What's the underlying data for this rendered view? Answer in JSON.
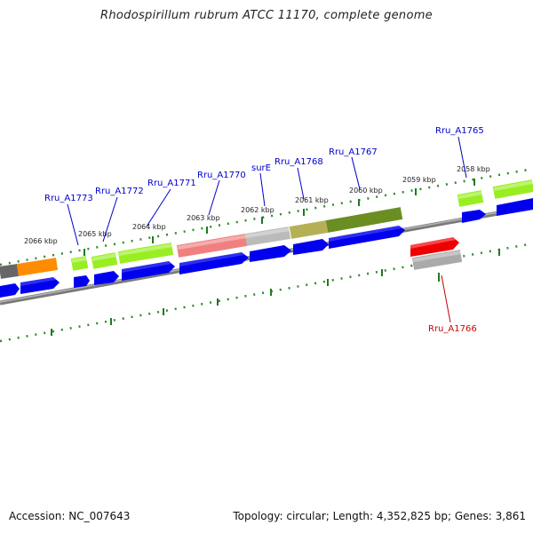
{
  "title": "Rhodospirillum rubrum ATCC 11170, complete genome",
  "footer": {
    "accession": "Accession: NC_007643",
    "stats": "Topology: circular; Length: 4,352,825 bp; Genes: 3,861"
  },
  "scale_labels": [
    "2066 kbp",
    "2065 kbp",
    "2064 kbp",
    "2063 kbp",
    "2062 kbp",
    "2061 kbp",
    "2060 kbp",
    "2059 kbp",
    "2058 kbp"
  ],
  "gene_labels": {
    "rru_a1773": "Rru_A1773",
    "rru_a1772": "Rru_A1772",
    "rru_a1771": "Rru_A1771",
    "rru_a1770": "Rru_A1770",
    "sure": "surE",
    "rru_a1768": "Rru_A1768",
    "rru_a1767": "Rru_A1767",
    "rru_a1765": "Rru_A1765",
    "rru_a1766": "Rru_A1766"
  },
  "colors": {
    "cds_arrow": "#0000ee",
    "backbone": "#808080",
    "tick": "#008000",
    "label_blue": "#0000cc",
    "label_red": "#cc0000",
    "highlight": "#ff0000"
  }
}
